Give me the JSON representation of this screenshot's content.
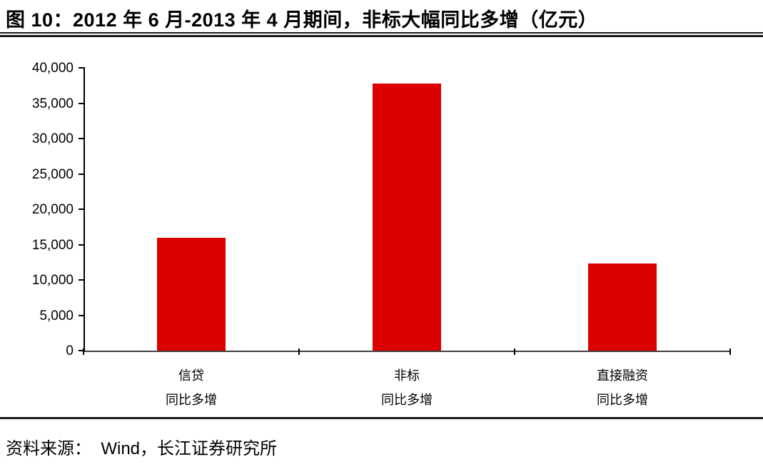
{
  "title": "图  10：2012 年 6 月-2013 年 4 月期间，非标大幅同比多增（亿元）",
  "source": "资料来源：  Wind，长江证券研究所",
  "chart_data": {
    "type": "bar",
    "categories": [
      {
        "line1": "信贷",
        "line2": "同比多增"
      },
      {
        "line1": "非标",
        "line2": "同比多增"
      },
      {
        "line1": "直接融资",
        "line2": "同比多增"
      }
    ],
    "values": [
      16000,
      37800,
      12300
    ],
    "title": "2012年6月-2013年4月期间，非标大幅同比多增（亿元）",
    "xlabel": "",
    "ylabel": "",
    "ylim": [
      0,
      40000
    ],
    "y_tick_step": 5000,
    "y_tick_labels": [
      "0",
      "5,000",
      "10,000",
      "15,000",
      "20,000",
      "25,000",
      "30,000",
      "35,000",
      "40,000"
    ],
    "grid": false,
    "legend": "none",
    "bar_color": "#dd0000",
    "axis_color": "#000000"
  }
}
